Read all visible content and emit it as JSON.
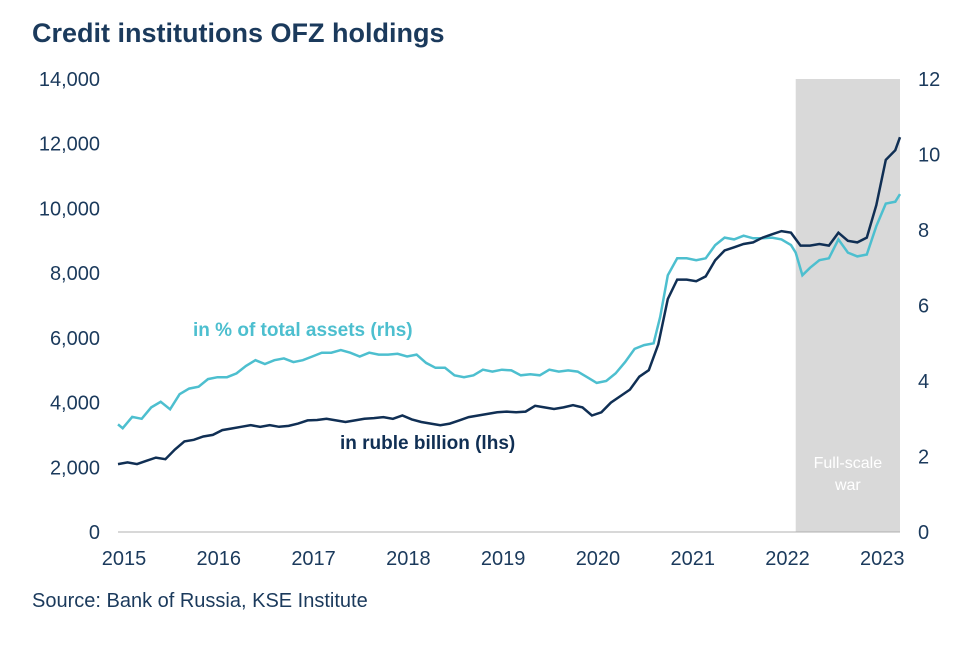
{
  "title": "Credit institutions OFZ holdings",
  "source": "Source: Bank of Russia, KSE Institute",
  "colors": {
    "ruble": "#102f54",
    "pct": "#4dbfcf",
    "shade": "#d9d9d9",
    "text": "#1b3a5c"
  },
  "chart_data": {
    "type": "line",
    "x_ticks": [
      "2015",
      "2016",
      "2017",
      "2018",
      "2019",
      "2020",
      "2021",
      "2022",
      "2023"
    ],
    "xlim": [
      2015.0,
      2023.25
    ],
    "y_left": {
      "lim": [
        0,
        14000
      ],
      "ticks": [
        "0",
        "2,000",
        "4,000",
        "6,000",
        "8,000",
        "10,000",
        "12,000",
        "14,000"
      ]
    },
    "y_right": {
      "lim": [
        0,
        12
      ],
      "ticks": [
        "0",
        "2",
        "4",
        "6",
        "8",
        "10",
        "12"
      ]
    },
    "shaded_region": {
      "from": 2022.15,
      "to": 2023.25,
      "label_line1": "Full-scale",
      "label_line2": "war"
    },
    "series": [
      {
        "name": "in ruble billion (lhs)",
        "axis": "left",
        "label_text": "in ruble billion (lhs)",
        "points": [
          [
            2015.0,
            2100
          ],
          [
            2015.1,
            2150
          ],
          [
            2015.2,
            2100
          ],
          [
            2015.3,
            2200
          ],
          [
            2015.4,
            2300
          ],
          [
            2015.5,
            2250
          ],
          [
            2015.6,
            2550
          ],
          [
            2015.7,
            2800
          ],
          [
            2015.8,
            2850
          ],
          [
            2015.9,
            2950
          ],
          [
            2016.0,
            3000
          ],
          [
            2016.1,
            3150
          ],
          [
            2016.2,
            3200
          ],
          [
            2016.3,
            3250
          ],
          [
            2016.4,
            3300
          ],
          [
            2016.5,
            3250
          ],
          [
            2016.6,
            3300
          ],
          [
            2016.7,
            3250
          ],
          [
            2016.8,
            3280
          ],
          [
            2016.9,
            3350
          ],
          [
            2017.0,
            3450
          ],
          [
            2017.1,
            3460
          ],
          [
            2017.2,
            3500
          ],
          [
            2017.3,
            3450
          ],
          [
            2017.4,
            3400
          ],
          [
            2017.5,
            3450
          ],
          [
            2017.6,
            3500
          ],
          [
            2017.7,
            3520
          ],
          [
            2017.8,
            3550
          ],
          [
            2017.9,
            3500
          ],
          [
            2018.0,
            3600
          ],
          [
            2018.1,
            3480
          ],
          [
            2018.2,
            3400
          ],
          [
            2018.3,
            3350
          ],
          [
            2018.4,
            3300
          ],
          [
            2018.5,
            3350
          ],
          [
            2018.6,
            3450
          ],
          [
            2018.7,
            3550
          ],
          [
            2018.8,
            3600
          ],
          [
            2018.9,
            3650
          ],
          [
            2019.0,
            3700
          ],
          [
            2019.1,
            3720
          ],
          [
            2019.2,
            3700
          ],
          [
            2019.3,
            3720
          ],
          [
            2019.4,
            3900
          ],
          [
            2019.5,
            3850
          ],
          [
            2019.6,
            3800
          ],
          [
            2019.7,
            3850
          ],
          [
            2019.8,
            3920
          ],
          [
            2019.9,
            3850
          ],
          [
            2020.0,
            3600
          ],
          [
            2020.1,
            3700
          ],
          [
            2020.2,
            4000
          ],
          [
            2020.3,
            4200
          ],
          [
            2020.4,
            4400
          ],
          [
            2020.5,
            4800
          ],
          [
            2020.6,
            5000
          ],
          [
            2020.7,
            5800
          ],
          [
            2020.8,
            7200
          ],
          [
            2020.9,
            7800
          ],
          [
            2021.0,
            7800
          ],
          [
            2021.1,
            7750
          ],
          [
            2021.2,
            7900
          ],
          [
            2021.3,
            8400
          ],
          [
            2021.4,
            8700
          ],
          [
            2021.5,
            8800
          ],
          [
            2021.6,
            8900
          ],
          [
            2021.7,
            8950
          ],
          [
            2021.8,
            9100
          ],
          [
            2021.9,
            9200
          ],
          [
            2022.0,
            9300
          ],
          [
            2022.1,
            9250
          ],
          [
            2022.2,
            8850
          ],
          [
            2022.3,
            8850
          ],
          [
            2022.4,
            8900
          ],
          [
            2022.5,
            8850
          ],
          [
            2022.6,
            9250
          ],
          [
            2022.7,
            9000
          ],
          [
            2022.8,
            8950
          ],
          [
            2022.9,
            9100
          ],
          [
            2023.0,
            10100
          ],
          [
            2023.1,
            11500
          ],
          [
            2023.2,
            11800
          ],
          [
            2023.3,
            12200
          ]
        ]
      },
      {
        "name": "in % of total assets (rhs)",
        "axis": "right",
        "label_text": "in % of total assets (rhs)",
        "points": [
          [
            2015.0,
            2.85
          ],
          [
            2015.05,
            2.75
          ],
          [
            2015.15,
            3.05
          ],
          [
            2015.25,
            3.0
          ],
          [
            2015.35,
            3.3
          ],
          [
            2015.45,
            3.45
          ],
          [
            2015.55,
            3.25
          ],
          [
            2015.65,
            3.65
          ],
          [
            2015.75,
            3.8
          ],
          [
            2015.85,
            3.85
          ],
          [
            2015.95,
            4.05
          ],
          [
            2016.05,
            4.1
          ],
          [
            2016.15,
            4.1
          ],
          [
            2016.25,
            4.2
          ],
          [
            2016.35,
            4.4
          ],
          [
            2016.45,
            4.55
          ],
          [
            2016.55,
            4.45
          ],
          [
            2016.65,
            4.55
          ],
          [
            2016.75,
            4.6
          ],
          [
            2016.85,
            4.5
          ],
          [
            2016.95,
            4.55
          ],
          [
            2017.05,
            4.65
          ],
          [
            2017.15,
            4.75
          ],
          [
            2017.25,
            4.75
          ],
          [
            2017.35,
            4.82
          ],
          [
            2017.45,
            4.75
          ],
          [
            2017.55,
            4.65
          ],
          [
            2017.65,
            4.75
          ],
          [
            2017.75,
            4.7
          ],
          [
            2017.85,
            4.7
          ],
          [
            2017.95,
            4.72
          ],
          [
            2018.05,
            4.65
          ],
          [
            2018.15,
            4.7
          ],
          [
            2018.25,
            4.48
          ],
          [
            2018.35,
            4.35
          ],
          [
            2018.45,
            4.35
          ],
          [
            2018.55,
            4.15
          ],
          [
            2018.65,
            4.1
          ],
          [
            2018.75,
            4.15
          ],
          [
            2018.85,
            4.3
          ],
          [
            2018.95,
            4.25
          ],
          [
            2019.05,
            4.3
          ],
          [
            2019.15,
            4.28
          ],
          [
            2019.25,
            4.15
          ],
          [
            2019.35,
            4.18
          ],
          [
            2019.45,
            4.15
          ],
          [
            2019.55,
            4.3
          ],
          [
            2019.65,
            4.25
          ],
          [
            2019.75,
            4.28
          ],
          [
            2019.85,
            4.25
          ],
          [
            2019.95,
            4.1
          ],
          [
            2020.05,
            3.95
          ],
          [
            2020.15,
            4.0
          ],
          [
            2020.25,
            4.2
          ],
          [
            2020.35,
            4.5
          ],
          [
            2020.45,
            4.85
          ],
          [
            2020.55,
            4.95
          ],
          [
            2020.65,
            5.0
          ],
          [
            2020.72,
            5.7
          ],
          [
            2020.8,
            6.8
          ],
          [
            2020.9,
            7.25
          ],
          [
            2021.0,
            7.25
          ],
          [
            2021.1,
            7.2
          ],
          [
            2021.2,
            7.25
          ],
          [
            2021.3,
            7.6
          ],
          [
            2021.4,
            7.8
          ],
          [
            2021.5,
            7.75
          ],
          [
            2021.6,
            7.85
          ],
          [
            2021.7,
            7.78
          ],
          [
            2021.8,
            7.78
          ],
          [
            2021.9,
            7.8
          ],
          [
            2022.0,
            7.75
          ],
          [
            2022.1,
            7.6
          ],
          [
            2022.15,
            7.4
          ],
          [
            2022.22,
            6.8
          ],
          [
            2022.3,
            7.0
          ],
          [
            2022.4,
            7.2
          ],
          [
            2022.5,
            7.25
          ],
          [
            2022.6,
            7.75
          ],
          [
            2022.7,
            7.4
          ],
          [
            2022.8,
            7.3
          ],
          [
            2022.9,
            7.35
          ],
          [
            2023.0,
            8.1
          ],
          [
            2023.1,
            8.7
          ],
          [
            2023.2,
            8.75
          ],
          [
            2023.3,
            8.95
          ]
        ]
      }
    ],
    "xlabel": "",
    "ylabel": "",
    "grid": false,
    "legend": "inline labels"
  }
}
